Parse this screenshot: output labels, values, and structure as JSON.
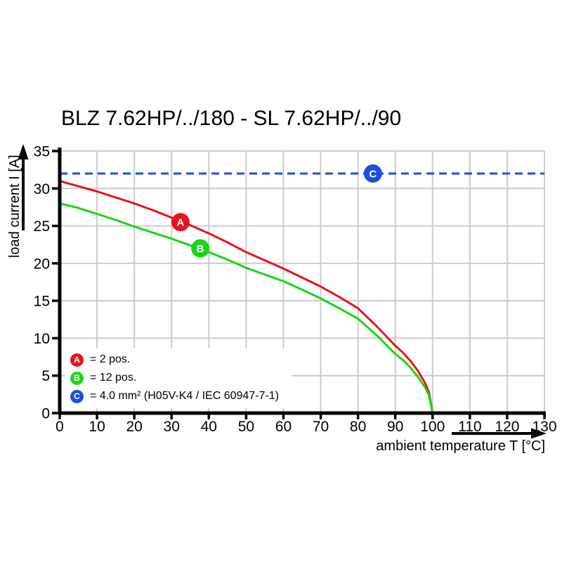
{
  "title": "BLZ 7.62HP/../180 - SL 7.62HP/../90",
  "colors": {
    "curve_red": "#e8131d",
    "curve_green": "#1bd41b",
    "curve_blue": "#1b4fdd",
    "grid": "#cccccc",
    "axis": "#000000",
    "background": "#ffffff"
  },
  "chart_data": {
    "type": "line",
    "title": "BLZ 7.62HP/../180 - SL 7.62HP/../90",
    "xlabel": "ambient temperature T [°C]",
    "ylabel": "load current I [A]",
    "xlim": [
      0,
      130
    ],
    "ylim": [
      0,
      35
    ],
    "x_ticks": [
      0,
      10,
      20,
      30,
      40,
      50,
      60,
      70,
      80,
      90,
      100,
      110,
      120,
      130
    ],
    "y_ticks": [
      0,
      5,
      10,
      15,
      20,
      25,
      30,
      35
    ],
    "grid": true,
    "legend_position": "lower left",
    "series": [
      {
        "name": "A",
        "legend_label": "= 2 pos.",
        "color": "#e8131d",
        "line_style": "solid",
        "marker": {
          "letter": "A",
          "x": 32.4,
          "y": 25.5
        },
        "x": [
          0,
          5,
          10,
          15,
          20,
          25,
          30,
          35,
          40,
          45,
          50,
          55,
          60,
          65,
          70,
          75,
          80,
          85,
          90,
          92,
          94,
          96,
          98,
          99,
          100
        ],
        "y": [
          31,
          30.3,
          29.6,
          28.8,
          28,
          27.1,
          26.1,
          25.1,
          24,
          22.8,
          21.5,
          20.4,
          19.3,
          18.1,
          16.9,
          15.5,
          14,
          11.6,
          9,
          8.1,
          7,
          5.7,
          4,
          2.8,
          0
        ]
      },
      {
        "name": "B",
        "legend_label": "= 12 pos.",
        "color": "#1bd41b",
        "line_style": "solid",
        "marker": {
          "letter": "B",
          "x": 37.7,
          "y": 22
        },
        "x": [
          0,
          5,
          10,
          15,
          20,
          25,
          30,
          35,
          40,
          45,
          50,
          55,
          60,
          65,
          70,
          75,
          80,
          85,
          90,
          92,
          94,
          96,
          98,
          99,
          100
        ],
        "y": [
          28,
          27.4,
          26.6,
          25.8,
          24.9,
          24.1,
          23.3,
          22.4,
          21.5,
          20.5,
          19.4,
          18.5,
          17.6,
          16.5,
          15.3,
          14,
          12.6,
          10.4,
          7.9,
          7.1,
          6.1,
          4.9,
          3.4,
          2.4,
          0
        ]
      },
      {
        "name": "C",
        "legend_label": "= 4.0 mm² (H05V-K4 / IEC 60947-7-1)",
        "color": "#1b4fdd",
        "line_style": "dashed",
        "marker": {
          "letter": "C",
          "x": 84,
          "y": 32
        },
        "x": [
          0,
          130
        ],
        "y": [
          32,
          32
        ]
      }
    ]
  }
}
